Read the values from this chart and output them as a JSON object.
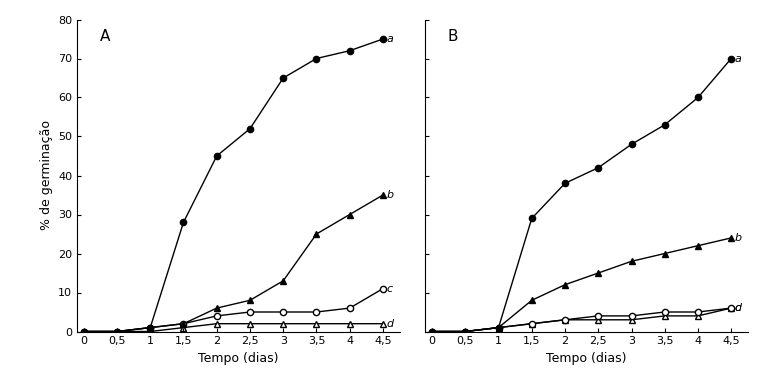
{
  "x": [
    0,
    0.5,
    1.0,
    1.5,
    2.0,
    2.5,
    3.0,
    3.5,
    4.0,
    4.5
  ],
  "panel_A": {
    "a": [
      0,
      0,
      1,
      28,
      45,
      52,
      65,
      70,
      72,
      75
    ],
    "b": [
      0,
      0,
      1,
      2,
      6,
      8,
      13,
      25,
      30,
      35
    ],
    "c": [
      0,
      0,
      1,
      2,
      4,
      5,
      5,
      5,
      6,
      11
    ],
    "d": [
      0,
      0,
      0,
      1,
      2,
      2,
      2,
      2,
      2,
      2
    ]
  },
  "panel_B": {
    "a": [
      0,
      0,
      1,
      29,
      38,
      42,
      48,
      53,
      60,
      70
    ],
    "b": [
      0,
      0,
      1,
      8,
      12,
      15,
      18,
      20,
      22,
      24
    ],
    "c": [
      0,
      0,
      1,
      2,
      3,
      4,
      4,
      5,
      5,
      6
    ],
    "d": [
      0,
      0,
      1,
      2,
      3,
      3,
      3,
      4,
      4,
      6
    ]
  },
  "ylim": [
    0,
    80
  ],
  "yticks": [
    0,
    10,
    20,
    30,
    40,
    50,
    60,
    70,
    80
  ],
  "xticks": [
    0,
    0.5,
    1.0,
    1.5,
    2.0,
    2.5,
    3.0,
    3.5,
    4.0,
    4.5
  ],
  "xlabel": "Tempo (dias)",
  "ylabel": "% de germinação",
  "label_A": "A",
  "label_B": "B",
  "series_labels": [
    "a",
    "b",
    "c",
    "d"
  ],
  "color": "#000000",
  "bg_color": "#ffffff",
  "linewidth": 1.0,
  "markersize": 4.5,
  "label_fontsize": 8,
  "axis_label_fontsize": 9,
  "panel_label_fontsize": 11,
  "series_label_fontsize": 8
}
